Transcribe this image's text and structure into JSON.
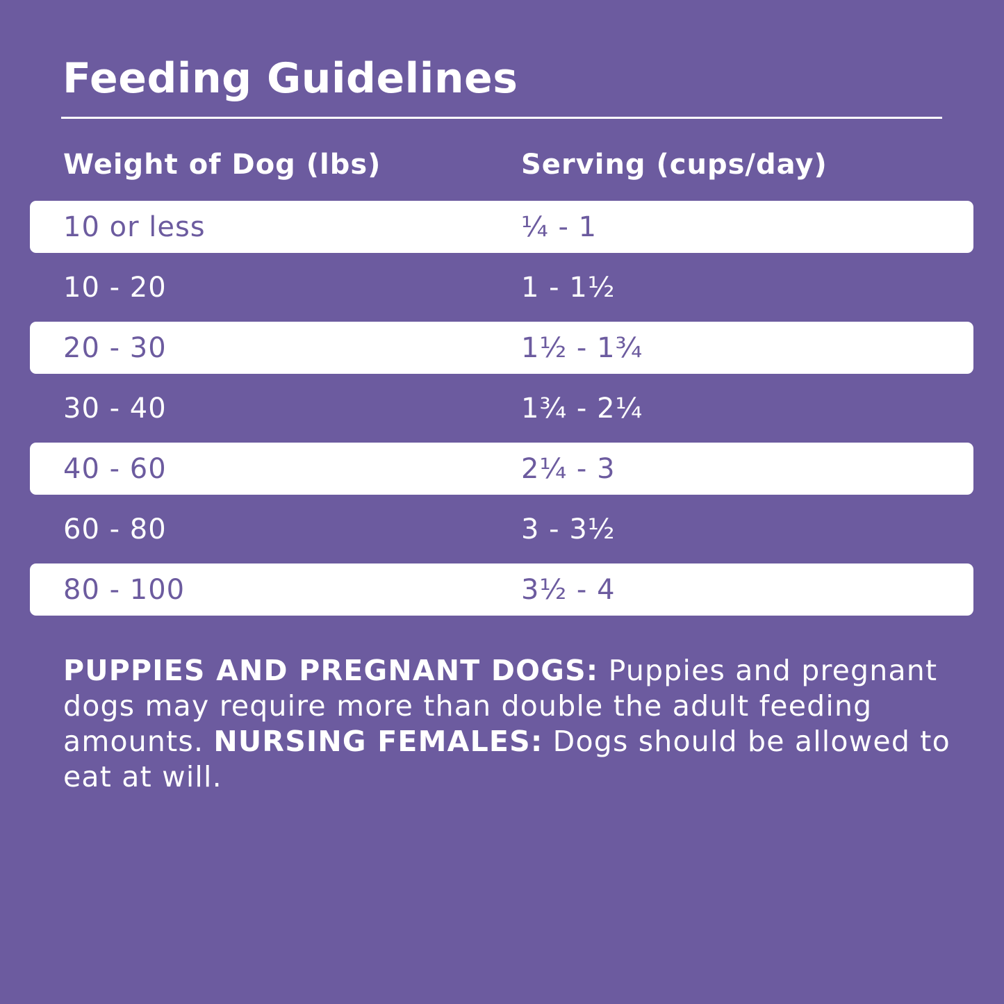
{
  "title": "Feeding Guidelines",
  "table": {
    "headers": [
      "Weight of Dog (lbs)",
      "Serving (cups/day)"
    ],
    "rows": [
      {
        "weight": "10 or less",
        "serving": "¼ - 1"
      },
      {
        "weight": "10 - 20",
        "serving": "1 - 1½"
      },
      {
        "weight": "20 - 30",
        "serving": "1½ - 1¾"
      },
      {
        "weight": "30 - 40",
        "serving": "1¾ - 2¼"
      },
      {
        "weight": "40 - 60",
        "serving": "2¼ - 3"
      },
      {
        "weight": "60 - 80",
        "serving": "3 - 3½"
      },
      {
        "weight": "80 - 100",
        "serving": "3½ - 4"
      }
    ]
  },
  "note": {
    "label1": "PUPPIES AND PREGNANT DOGS:",
    "text1": " Puppies and pregnant dogs may require more than double the adult feeding amounts. ",
    "label2": "NURSING FEMALES:",
    "text2": " Dogs should be allowed to eat at will."
  },
  "colors": {
    "background": "#6c5b9f",
    "row_highlight": "#ffffff",
    "text": "#ffffff"
  }
}
